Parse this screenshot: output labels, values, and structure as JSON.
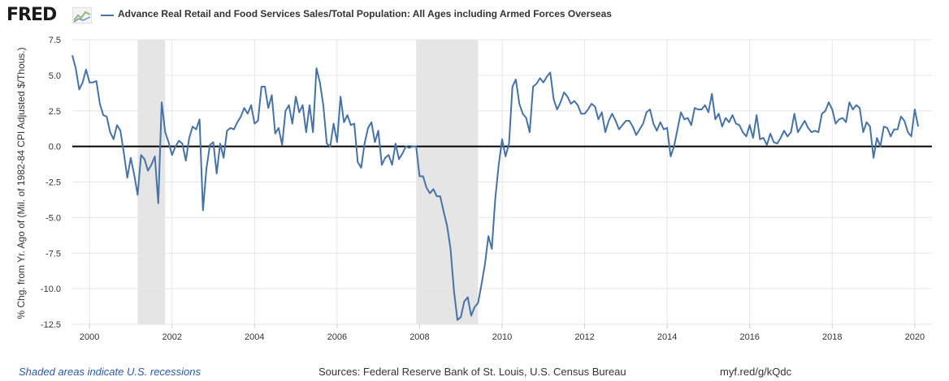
{
  "header": {
    "logo_text": "FRED",
    "logo_icon": "fred-chart-mark-icon"
  },
  "chart_data": {
    "type": "line",
    "title": "Advance Real Retail and Food Services Sales/Total Population: All Ages including Armed Forces Overseas",
    "xlabel": "",
    "ylabel": "% Chg. from Yr. Ago of (Mil. of 1982-84 CPI Adjusted $/Thous.)",
    "ylim": [
      -12.5,
      7.5
    ],
    "xlim": [
      "1999-08",
      "2020-06"
    ],
    "y_ticks": [
      {
        "value": 7.5,
        "label": "7.5"
      },
      {
        "value": 5.0,
        "label": "5.0"
      },
      {
        "value": 2.5,
        "label": "2.5"
      },
      {
        "value": 0.0,
        "label": "0.0"
      },
      {
        "value": -2.5,
        "label": "-2.5"
      },
      {
        "value": -5.0,
        "label": "-5.0"
      },
      {
        "value": -7.5,
        "label": "-7.5"
      },
      {
        "value": -10.0,
        "label": "-10.0"
      },
      {
        "value": -12.5,
        "label": "-12.5"
      }
    ],
    "x_ticks": [
      "2000",
      "2002",
      "2004",
      "2006",
      "2008",
      "2010",
      "2012",
      "2014",
      "2016",
      "2018",
      "2020"
    ],
    "grid": true,
    "zero_line": true,
    "recessions": [
      {
        "start": "2001-03",
        "end": "2001-11"
      },
      {
        "start": "2007-12",
        "end": "2009-06"
      }
    ],
    "series": [
      {
        "name": "Advance Real Retail and Food Services Sales/Total Population: All Ages including Armed Forces Overseas",
        "color": "#4572a7",
        "points": [
          [
            "1999-08",
            6.4
          ],
          [
            "1999-09",
            5.5
          ],
          [
            "1999-10",
            4.0
          ],
          [
            "1999-11",
            4.5
          ],
          [
            "1999-12",
            5.4
          ],
          [
            "2000-01",
            4.5
          ],
          [
            "2000-02",
            4.5
          ],
          [
            "2000-03",
            4.6
          ],
          [
            "2000-04",
            3.0
          ],
          [
            "2000-05",
            2.2
          ],
          [
            "2000-06",
            2.1
          ],
          [
            "2000-07",
            1.0
          ],
          [
            "2000-08",
            0.5
          ],
          [
            "2000-09",
            1.5
          ],
          [
            "2000-10",
            1.1
          ],
          [
            "2000-11",
            -0.5
          ],
          [
            "2000-12",
            -2.2
          ],
          [
            "2001-01",
            -0.8
          ],
          [
            "2001-02",
            -2.0
          ],
          [
            "2001-03",
            -3.4
          ],
          [
            "2001-04",
            -0.6
          ],
          [
            "2001-05",
            -0.9
          ],
          [
            "2001-06",
            -1.7
          ],
          [
            "2001-07",
            -1.3
          ],
          [
            "2001-08",
            -0.7
          ],
          [
            "2001-09",
            -4.0
          ],
          [
            "2001-10",
            3.1
          ],
          [
            "2001-11",
            1.0
          ],
          [
            "2001-12",
            0.3
          ],
          [
            "2002-01",
            -0.6
          ],
          [
            "2002-02",
            0.0
          ],
          [
            "2002-03",
            0.4
          ],
          [
            "2002-04",
            0.2
          ],
          [
            "2002-05",
            -1.0
          ],
          [
            "2002-06",
            0.6
          ],
          [
            "2002-07",
            1.4
          ],
          [
            "2002-08",
            1.2
          ],
          [
            "2002-09",
            1.9
          ],
          [
            "2002-10",
            -4.5
          ],
          [
            "2002-11",
            -1.6
          ],
          [
            "2002-12",
            0.1
          ],
          [
            "2003-01",
            0.3
          ],
          [
            "2003-02",
            -1.9
          ],
          [
            "2003-03",
            0.2
          ],
          [
            "2003-04",
            -0.8
          ],
          [
            "2003-05",
            1.1
          ],
          [
            "2003-06",
            1.3
          ],
          [
            "2003-07",
            1.2
          ],
          [
            "2003-08",
            1.7
          ],
          [
            "2003-09",
            2.1
          ],
          [
            "2003-10",
            2.7
          ],
          [
            "2003-11",
            2.3
          ],
          [
            "2003-12",
            2.9
          ],
          [
            "2004-01",
            1.6
          ],
          [
            "2004-02",
            1.8
          ],
          [
            "2004-03",
            4.2
          ],
          [
            "2004-04",
            4.2
          ],
          [
            "2004-05",
            2.7
          ],
          [
            "2004-06",
            3.6
          ],
          [
            "2004-07",
            0.9
          ],
          [
            "2004-08",
            1.3
          ],
          [
            "2004-09",
            0.1
          ],
          [
            "2004-10",
            2.5
          ],
          [
            "2004-11",
            2.9
          ],
          [
            "2004-12",
            1.6
          ],
          [
            "2005-01",
            3.5
          ],
          [
            "2005-02",
            2.4
          ],
          [
            "2005-03",
            2.9
          ],
          [
            "2005-04",
            1.0
          ],
          [
            "2005-05",
            2.9
          ],
          [
            "2005-06",
            1.0
          ],
          [
            "2005-07",
            5.5
          ],
          [
            "2005-08",
            4.5
          ],
          [
            "2005-09",
            2.9
          ],
          [
            "2005-10",
            0.2
          ],
          [
            "2005-11",
            0.0
          ],
          [
            "2005-12",
            1.6
          ],
          [
            "2006-01",
            0.3
          ],
          [
            "2006-02",
            3.5
          ],
          [
            "2006-03",
            1.7
          ],
          [
            "2006-04",
            2.2
          ],
          [
            "2006-05",
            1.5
          ],
          [
            "2006-06",
            1.6
          ],
          [
            "2006-07",
            -1.1
          ],
          [
            "2006-08",
            -1.5
          ],
          [
            "2006-09",
            0.2
          ],
          [
            "2006-10",
            1.3
          ],
          [
            "2006-11",
            1.7
          ],
          [
            "2006-12",
            0.3
          ],
          [
            "2007-01",
            1.1
          ],
          [
            "2007-02",
            -1.3
          ],
          [
            "2007-03",
            -0.8
          ],
          [
            "2007-04",
            -0.6
          ],
          [
            "2007-05",
            -1.3
          ],
          [
            "2007-06",
            0.2
          ],
          [
            "2007-07",
            -0.9
          ],
          [
            "2007-08",
            -0.5
          ],
          [
            "2007-09",
            0.0
          ],
          [
            "2007-10",
            -0.1
          ],
          [
            "2007-11",
            0.0
          ],
          [
            "2007-12",
            0.0
          ],
          [
            "2008-01",
            -2.1
          ],
          [
            "2008-02",
            -2.1
          ],
          [
            "2008-03",
            -2.9
          ],
          [
            "2008-04",
            -3.3
          ],
          [
            "2008-05",
            -3.0
          ],
          [
            "2008-06",
            -3.5
          ],
          [
            "2008-07",
            -3.5
          ],
          [
            "2008-08",
            -4.6
          ],
          [
            "2008-09",
            -5.6
          ],
          [
            "2008-10",
            -7.2
          ],
          [
            "2008-11",
            -10.2
          ],
          [
            "2008-12",
            -12.2
          ],
          [
            "2009-01",
            -12.0
          ],
          [
            "2009-02",
            -10.9
          ],
          [
            "2009-03",
            -10.6
          ],
          [
            "2009-04",
            -11.9
          ],
          [
            "2009-05",
            -11.3
          ],
          [
            "2009-06",
            -11.0
          ],
          [
            "2009-07",
            -9.7
          ],
          [
            "2009-08",
            -8.3
          ],
          [
            "2009-09",
            -6.3
          ],
          [
            "2009-10",
            -7.2
          ],
          [
            "2009-11",
            -3.7
          ],
          [
            "2009-12",
            -1.3
          ],
          [
            "2010-01",
            0.5
          ],
          [
            "2010-02",
            -0.7
          ],
          [
            "2010-03",
            0.2
          ],
          [
            "2010-04",
            4.2
          ],
          [
            "2010-05",
            4.7
          ],
          [
            "2010-06",
            3.0
          ],
          [
            "2010-07",
            2.3
          ],
          [
            "2010-08",
            2.0
          ],
          [
            "2010-09",
            1.0
          ],
          [
            "2010-10",
            4.2
          ],
          [
            "2010-11",
            4.4
          ],
          [
            "2010-12",
            4.8
          ],
          [
            "2011-01",
            4.5
          ],
          [
            "2011-02",
            4.9
          ],
          [
            "2011-03",
            5.2
          ],
          [
            "2011-04",
            3.3
          ],
          [
            "2011-05",
            2.6
          ],
          [
            "2011-06",
            3.1
          ],
          [
            "2011-07",
            3.8
          ],
          [
            "2011-08",
            3.5
          ],
          [
            "2011-09",
            3.0
          ],
          [
            "2011-10",
            3.2
          ],
          [
            "2011-11",
            2.9
          ],
          [
            "2011-12",
            2.3
          ],
          [
            "2012-01",
            2.3
          ],
          [
            "2012-02",
            2.6
          ],
          [
            "2012-03",
            3.0
          ],
          [
            "2012-04",
            2.8
          ],
          [
            "2012-05",
            1.9
          ],
          [
            "2012-06",
            2.4
          ],
          [
            "2012-07",
            1.0
          ],
          [
            "2012-08",
            1.8
          ],
          [
            "2012-09",
            2.3
          ],
          [
            "2012-10",
            1.8
          ],
          [
            "2012-11",
            1.2
          ],
          [
            "2012-12",
            1.5
          ],
          [
            "2013-01",
            1.8
          ],
          [
            "2013-02",
            1.8
          ],
          [
            "2013-03",
            1.4
          ],
          [
            "2013-04",
            0.8
          ],
          [
            "2013-05",
            1.2
          ],
          [
            "2013-06",
            1.6
          ],
          [
            "2013-07",
            2.4
          ],
          [
            "2013-08",
            2.6
          ],
          [
            "2013-09",
            1.6
          ],
          [
            "2013-10",
            1.1
          ],
          [
            "2013-11",
            1.7
          ],
          [
            "2013-12",
            1.2
          ],
          [
            "2014-01",
            1.3
          ],
          [
            "2014-02",
            -0.7
          ],
          [
            "2014-03",
            0.0
          ],
          [
            "2014-04",
            1.2
          ],
          [
            "2014-05",
            2.4
          ],
          [
            "2014-06",
            1.9
          ],
          [
            "2014-07",
            2.0
          ],
          [
            "2014-08",
            1.5
          ],
          [
            "2014-09",
            2.7
          ],
          [
            "2014-10",
            2.6
          ],
          [
            "2014-11",
            2.6
          ],
          [
            "2014-12",
            2.9
          ],
          [
            "2015-01",
            2.4
          ],
          [
            "2015-02",
            3.7
          ],
          [
            "2015-03",
            1.9
          ],
          [
            "2015-04",
            2.3
          ],
          [
            "2015-05",
            1.4
          ],
          [
            "2015-06",
            2.0
          ],
          [
            "2015-07",
            1.7
          ],
          [
            "2015-08",
            2.2
          ],
          [
            "2015-09",
            1.6
          ],
          [
            "2015-10",
            1.5
          ],
          [
            "2015-11",
            1.0
          ],
          [
            "2015-12",
            0.7
          ],
          [
            "2016-01",
            1.5
          ],
          [
            "2016-02",
            0.6
          ],
          [
            "2016-03",
            2.2
          ],
          [
            "2016-04",
            0.5
          ],
          [
            "2016-05",
            0.6
          ],
          [
            "2016-06",
            0.1
          ],
          [
            "2016-07",
            0.9
          ],
          [
            "2016-08",
            0.3
          ],
          [
            "2016-09",
            0.2
          ],
          [
            "2016-10",
            0.6
          ],
          [
            "2016-11",
            1.1
          ],
          [
            "2016-12",
            0.7
          ],
          [
            "2017-01",
            1.0
          ],
          [
            "2017-02",
            2.3
          ],
          [
            "2017-03",
            1.0
          ],
          [
            "2017-04",
            1.4
          ],
          [
            "2017-05",
            1.8
          ],
          [
            "2017-06",
            1.3
          ],
          [
            "2017-07",
            1.0
          ],
          [
            "2017-08",
            1.1
          ],
          [
            "2017-09",
            1.0
          ],
          [
            "2017-10",
            2.3
          ],
          [
            "2017-11",
            2.5
          ],
          [
            "2017-12",
            3.1
          ],
          [
            "2018-01",
            2.6
          ],
          [
            "2018-02",
            1.6
          ],
          [
            "2018-03",
            1.9
          ],
          [
            "2018-04",
            2.0
          ],
          [
            "2018-05",
            1.7
          ],
          [
            "2018-06",
            3.1
          ],
          [
            "2018-07",
            2.6
          ],
          [
            "2018-08",
            2.9
          ],
          [
            "2018-09",
            2.7
          ],
          [
            "2018-10",
            1.0
          ],
          [
            "2018-11",
            1.7
          ],
          [
            "2018-12",
            1.4
          ],
          [
            "2019-01",
            -0.8
          ],
          [
            "2019-02",
            0.6
          ],
          [
            "2019-03",
            0.0
          ],
          [
            "2019-04",
            1.4
          ],
          [
            "2019-05",
            1.3
          ],
          [
            "2019-06",
            0.7
          ],
          [
            "2019-07",
            1.2
          ],
          [
            "2019-08",
            1.2
          ],
          [
            "2019-09",
            2.1
          ],
          [
            "2019-10",
            1.8
          ],
          [
            "2019-11",
            1.0
          ],
          [
            "2019-12",
            0.7
          ],
          [
            "2020-01",
            2.6
          ],
          [
            "2020-02",
            1.4
          ]
        ]
      }
    ]
  },
  "footer": {
    "recession_note": "Shaded areas indicate U.S. recessions",
    "sources": "Sources: Federal Reserve Bank of St. Louis, U.S. Census Bureau",
    "url": "myf.red/g/kQdc"
  },
  "colors": {
    "series": "#4572a7",
    "recession_shade": "#e5e5e5",
    "grid": "#e6e6e6",
    "zero_line": "#000000",
    "footer_note": "#2b59a6"
  }
}
